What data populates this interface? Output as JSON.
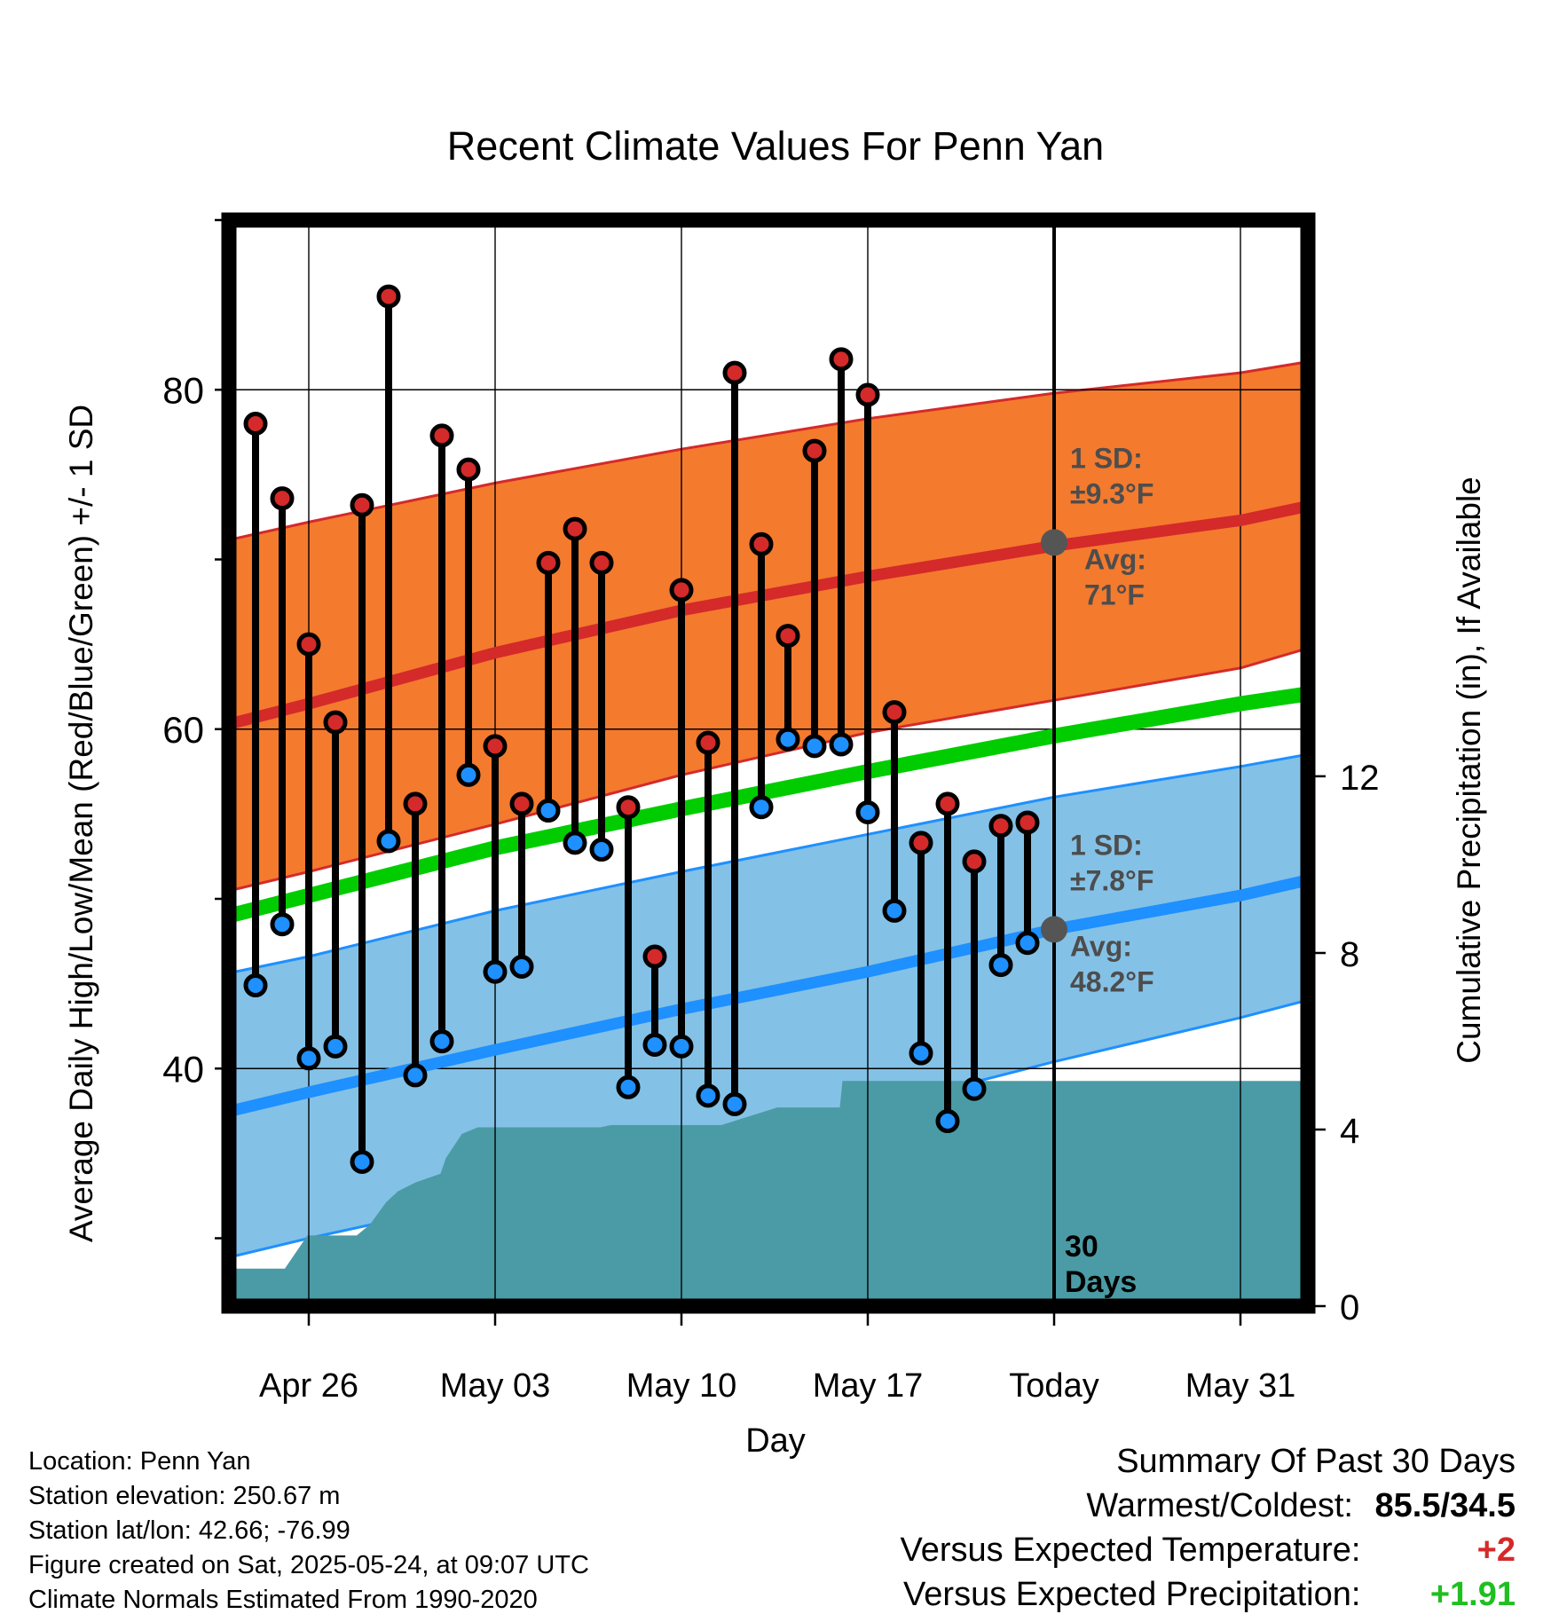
{
  "chart_data": {
    "type": "line",
    "title": "Recent Climate Values For Penn Yan",
    "xlabel": "Day",
    "ylabel_left": "Average Daily High/Low/Mean (Red/Blue/Green) +/- 1 SD",
    "ylabel_right": "Cumulative Precipitation (in), If Available",
    "x_ticks": [
      "Apr 26",
      "May 03",
      "May 10",
      "May 17",
      "Today",
      "May 31"
    ],
    "x_tick_dates": [
      "2025-04-26",
      "2025-05-03",
      "2025-05-10",
      "2025-05-17",
      "2025-05-24",
      "2025-05-31"
    ],
    "xlim": [
      "2025-04-23",
      "2025-06-01"
    ],
    "ylim_left": [
      26,
      90
    ],
    "yticks_left": [
      40,
      60,
      80
    ],
    "ylim_right": [
      0,
      24.6
    ],
    "yticks_right": [
      0,
      4,
      8,
      12
    ],
    "grid": true,
    "today": "2025-05-24",
    "days_label": "30\nDays",
    "normals": {
      "high_avg": [
        [
          -4,
          59.9
        ],
        [
          0,
          61.5
        ],
        [
          7,
          64.5
        ],
        [
          14,
          67
        ],
        [
          21,
          69
        ],
        [
          28,
          70.8
        ],
        [
          35,
          72.3
        ],
        [
          38.9,
          73.6
        ]
      ],
      "high_sd_upper": [
        [
          -4,
          70.8
        ],
        [
          0,
          72.2
        ],
        [
          7,
          74.5
        ],
        [
          14,
          76.5
        ],
        [
          21,
          78.3
        ],
        [
          28,
          79.8
        ],
        [
          35,
          81
        ],
        [
          38.9,
          82
        ]
      ],
      "high_sd_lower": [
        [
          -4,
          50.1
        ],
        [
          0,
          51.6
        ],
        [
          7,
          54.4
        ],
        [
          14,
          57.3
        ],
        [
          21,
          59.8
        ],
        [
          28,
          61.7
        ],
        [
          35,
          63.6
        ],
        [
          38.9,
          65.4
        ]
      ],
      "mean_avg": [
        [
          -4,
          48.6
        ],
        [
          0,
          50.2
        ],
        [
          7,
          53
        ],
        [
          14,
          55.3
        ],
        [
          21,
          57.5
        ],
        [
          28,
          59.6
        ],
        [
          35,
          61.5
        ],
        [
          38.9,
          62.4
        ]
      ],
      "low_avg": [
        [
          -4,
          37.1
        ],
        [
          0,
          38.6
        ],
        [
          7,
          41.1
        ],
        [
          14,
          43.5
        ],
        [
          21,
          45.7
        ],
        [
          28,
          48.2
        ],
        [
          35,
          50.2
        ],
        [
          38.9,
          51.6
        ]
      ],
      "low_sd_upper": [
        [
          -4,
          45.3
        ],
        [
          0,
          46.6
        ],
        [
          7,
          49.3
        ],
        [
          14,
          51.6
        ],
        [
          21,
          53.8
        ],
        [
          28,
          56
        ],
        [
          35,
          57.8
        ],
        [
          38.9,
          58.9
        ]
      ],
      "low_sd_lower": [
        [
          -4,
          28.5
        ],
        [
          0,
          30
        ],
        [
          7,
          32.4
        ],
        [
          14,
          34.8
        ],
        [
          21,
          37.6
        ],
        [
          28,
          40.4
        ],
        [
          35,
          43
        ],
        [
          38.9,
          44.6
        ]
      ]
    },
    "annotations": {
      "high": {
        "sd_label": "1 SD:",
        "sd_value": "±9.3°F",
        "avg_label": "Avg:",
        "avg_value": "71°F",
        "avg": 71
      },
      "low": {
        "sd_label": "1 SD:",
        "sd_value": "±7.8°F",
        "avg_label": "Avg:",
        "avg_value": "48.2°F",
        "avg": 48.2
      }
    },
    "series": [
      {
        "name": "High",
        "values": [
          78.0,
          73.6,
          65.0,
          60.4,
          73.2,
          85.5,
          55.6,
          77.3,
          75.3,
          59.0,
          55.6,
          69.8,
          71.8,
          69.8,
          55.4,
          46.6,
          68.2,
          59.2,
          81.0,
          70.9,
          65.5,
          76.4,
          81.8,
          79.7,
          61.0,
          53.3,
          55.6,
          52.2,
          54.3,
          54.5
        ]
      },
      {
        "name": "Low",
        "values": [
          44.9,
          48.5,
          40.6,
          41.3,
          34.5,
          53.4,
          39.6,
          41.6,
          57.3,
          45.7,
          46.0,
          55.2,
          53.3,
          52.9,
          38.9,
          41.4,
          41.3,
          38.4,
          37.9,
          55.4,
          59.4,
          59.0,
          59.1,
          55.1,
          49.3,
          40.9,
          36.9,
          38.8,
          46.1,
          47.4
        ]
      }
    ],
    "x": [
      "2025-04-24",
      "2025-04-25",
      "2025-04-26",
      "2025-04-27",
      "2025-04-28",
      "2025-04-29",
      "2025-04-30",
      "2025-05-01",
      "2025-05-02",
      "2025-05-03",
      "2025-05-04",
      "2025-05-05",
      "2025-05-06",
      "2025-05-07",
      "2025-05-08",
      "2025-05-09",
      "2025-05-10",
      "2025-05-11",
      "2025-05-12",
      "2025-05-13",
      "2025-05-14",
      "2025-05-15",
      "2025-05-16",
      "2025-05-17",
      "2025-05-18",
      "2025-05-19",
      "2025-05-20",
      "2025-05-21",
      "2025-05-22",
      "2025-05-23"
    ],
    "precip_cumulative": [
      [
        -3.85,
        0
      ],
      [
        -3.3,
        0.4
      ],
      [
        -2.85,
        0.85
      ],
      [
        -0.9,
        0.85
      ],
      [
        -0.05,
        1.6
      ],
      [
        1.8,
        1.6
      ],
      [
        2.3,
        1.85
      ],
      [
        2.9,
        2.35
      ],
      [
        3.35,
        2.6
      ],
      [
        4.0,
        2.8
      ],
      [
        4.95,
        3.0
      ],
      [
        5.15,
        3.35
      ],
      [
        5.75,
        3.9
      ],
      [
        6.35,
        4.05
      ],
      [
        10.95,
        4.05
      ],
      [
        11.35,
        4.1
      ],
      [
        15.5,
        4.1
      ],
      [
        17.6,
        4.5
      ],
      [
        17.7,
        4.5
      ],
      [
        19.95,
        4.5
      ],
      [
        20.05,
        5.1
      ],
      [
        38.9,
        5.1
      ]
    ]
  },
  "location": {
    "location_line": "Location: Penn Yan",
    "elevation_line": "Station elevation: 250.67 m",
    "latlon_line": "Station lat/lon: 42.66; -76.99",
    "created_line": "Figure created on Sat, 2025-05-24, at 09:07 UTC",
    "normals_line": "Climate Normals Estimated From 1990-2020"
  },
  "summary": {
    "title": "Summary Of Past 30 Days",
    "warm_cold_label": "Warmest/Coldest:",
    "warm_cold_value": "85.5/34.5",
    "temp_label": "Versus Expected Temperature:",
    "temp_value": "+2",
    "precip_label": "Versus Expected Precipitation:",
    "precip_value": "+1.91"
  },
  "colors": {
    "high_band": "#f47a2e",
    "high_line": "#d42a2a",
    "low_band": "#84c1e6",
    "low_line": "#1e90ff",
    "mean_line": "#00cc00",
    "precip": "#4a9ba5",
    "high_dot": "#d42a2a",
    "low_dot": "#1e90ff",
    "annotation": "#4d4d4d",
    "warm_value": "#000000",
    "temp_value": "#d42a2a",
    "precip_value": "#1fbf1f"
  }
}
